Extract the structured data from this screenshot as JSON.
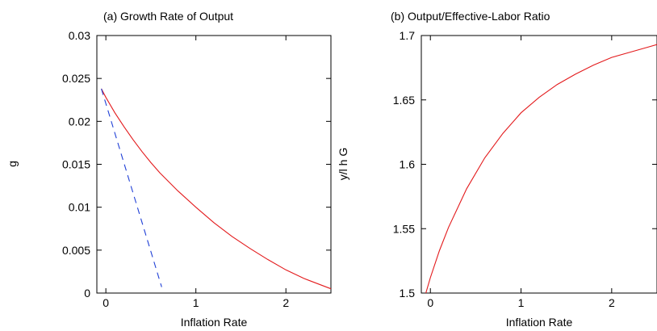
{
  "chart_data": [
    {
      "type": "line",
      "title": "(a) Growth Rate of Output",
      "xlabel": "Inflation Rate",
      "ylabel": "g",
      "xlim": [
        -0.1,
        2.5
      ],
      "ylim": [
        0,
        0.03
      ],
      "x_ticks": [
        0,
        1,
        2
      ],
      "y_ticks": [
        0,
        0.005,
        0.01,
        0.015,
        0.02,
        0.025,
        0.03
      ],
      "y_tick_labels": [
        "0",
        "0.005",
        "0.01",
        "0.015",
        "0.02",
        "0.025",
        "0.03"
      ],
      "grid": false,
      "series": [
        {
          "color": "#e31a1c",
          "style": "solid",
          "x": [
            -0.05,
            0,
            0.1,
            0.2,
            0.3,
            0.4,
            0.5,
            0.6,
            0.8,
            1.0,
            1.2,
            1.4,
            1.6,
            1.8,
            2.0,
            2.2,
            2.4,
            2.5
          ],
          "y": [
            0.0238,
            0.0228,
            0.021,
            0.0194,
            0.0179,
            0.0165,
            0.0152,
            0.014,
            0.0119,
            0.01,
            0.0082,
            0.0066,
            0.0052,
            0.0039,
            0.0027,
            0.0017,
            0.0009,
            0.0005
          ]
        },
        {
          "color": "#1f3fd6",
          "style": "dashed",
          "x": [
            -0.05,
            0.62
          ],
          "y": [
            0.0238,
            0.0007
          ]
        }
      ]
    },
    {
      "type": "line",
      "title": "(b) Output/Effective-Labor Ratio",
      "xlabel": "Inflation Rate",
      "ylabel": "y/l h G",
      "xlim": [
        -0.1,
        2.5
      ],
      "ylim": [
        1.5,
        1.7
      ],
      "x_ticks": [
        0,
        1,
        2
      ],
      "y_ticks": [
        1.5,
        1.55,
        1.6,
        1.65,
        1.7
      ],
      "y_tick_labels": [
        "1.5",
        "1.55",
        "1.6",
        "1.65",
        "1.7"
      ],
      "grid": false,
      "series": [
        {
          "color": "#e31a1c",
          "style": "solid",
          "x": [
            -0.05,
            0,
            0.1,
            0.2,
            0.4,
            0.6,
            0.8,
            1.0,
            1.2,
            1.4,
            1.6,
            1.8,
            2.0,
            2.2,
            2.4,
            2.5
          ],
          "y": [
            1.5,
            1.512,
            1.533,
            1.551,
            1.581,
            1.605,
            1.624,
            1.64,
            1.652,
            1.662,
            1.67,
            1.677,
            1.683,
            1.687,
            1.691,
            1.693
          ]
        }
      ]
    }
  ]
}
